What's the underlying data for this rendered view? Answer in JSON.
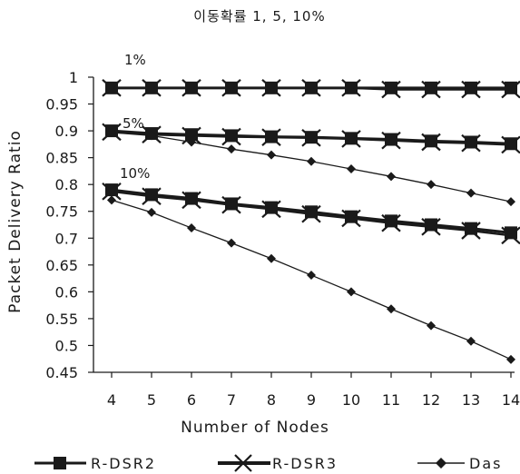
{
  "chart_data": {
    "type": "line",
    "title": "이동확률 1, 5, 10%",
    "xlabel": "Number of Nodes",
    "ylabel": "Packet Delivery Ratio",
    "x": [
      4,
      5,
      6,
      7,
      8,
      9,
      10,
      11,
      12,
      13,
      14
    ],
    "xlim": [
      4,
      14
    ],
    "ylim": [
      0.45,
      1
    ],
    "yticks": [
      "0.45",
      "0.5",
      "0.55",
      "0.6",
      "0.65",
      "0.7",
      "0.75",
      "0.8",
      "0.85",
      "0.9",
      "0.95",
      "1"
    ],
    "grid": false,
    "legend_position": "bottom",
    "groups": [
      {
        "annotation": "1%",
        "series": [
          {
            "name": "R-DSR2",
            "values": [
              0.98,
              0.98,
              0.98,
              0.98,
              0.98,
              0.98,
              0.98,
              0.98,
              0.98,
              0.98,
              0.98
            ]
          },
          {
            "name": "R-DSR3",
            "values": [
              0.98,
              0.98,
              0.98,
              0.98,
              0.98,
              0.98,
              0.98,
              0.977,
              0.977,
              0.977,
              0.977
            ]
          }
        ]
      },
      {
        "annotation": "5%",
        "series": [
          {
            "name": "R-DSR2",
            "values": [
              0.9,
              0.895,
              0.893,
              0.891,
              0.889,
              0.888,
              0.886,
              0.884,
              0.881,
              0.879,
              0.876
            ]
          },
          {
            "name": "R-DSR3",
            "values": [
              0.898,
              0.893,
              0.891,
              0.889,
              0.888,
              0.887,
              0.885,
              0.882,
              0.879,
              0.877,
              0.874
            ]
          },
          {
            "name": "Das",
            "values": [
              0.897,
              0.891,
              0.879,
              0.866,
              0.855,
              0.843,
              0.829,
              0.815,
              0.8,
              0.784,
              0.768
            ]
          }
        ]
      },
      {
        "annotation": "10%",
        "series": [
          {
            "name": "R-DSR2",
            "values": [
              0.79,
              0.781,
              0.774,
              0.764,
              0.757,
              0.749,
              0.74,
              0.732,
              0.725,
              0.718,
              0.71
            ]
          },
          {
            "name": "R-DSR3",
            "values": [
              0.787,
              0.778,
              0.771,
              0.762,
              0.754,
              0.745,
              0.737,
              0.728,
              0.721,
              0.714,
              0.705
            ]
          },
          {
            "name": "Das",
            "values": [
              0.771,
              0.748,
              0.719,
              0.691,
              0.662,
              0.631,
              0.6,
              0.568,
              0.537,
              0.508,
              0.474
            ]
          }
        ]
      }
    ],
    "legend": [
      {
        "name": "R-DSR2",
        "marker": "square"
      },
      {
        "name": "R-DSR3",
        "marker": "x"
      },
      {
        "name": "Das",
        "marker": "diamond"
      }
    ],
    "colors": {
      "line": "#1a1a1a",
      "background": "#ffffff"
    }
  }
}
